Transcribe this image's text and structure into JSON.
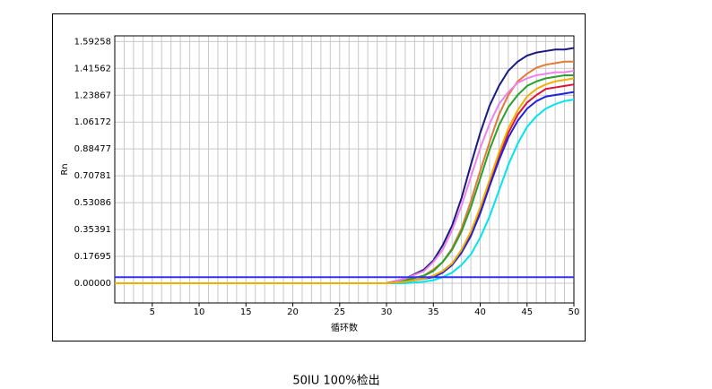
{
  "chart_data": {
    "type": "line",
    "y_label": "Rn",
    "x_label": "循环数",
    "caption": "50IU   100%检出",
    "x": [
      1,
      5,
      10,
      15,
      20,
      25,
      30,
      32,
      34,
      35,
      36,
      37,
      38,
      39,
      40,
      41,
      42,
      43,
      44,
      45,
      46,
      47,
      48,
      49,
      50
    ],
    "series": [
      {
        "color": "#1a1a80",
        "values": [
          0,
          0,
          0,
          0,
          0,
          0,
          0,
          0.03,
          0.09,
          0.15,
          0.25,
          0.38,
          0.56,
          0.78,
          0.99,
          1.17,
          1.3,
          1.4,
          1.46,
          1.5,
          1.52,
          1.53,
          1.54,
          1.54,
          1.55
        ]
      },
      {
        "color": "#e07b39",
        "values": [
          0,
          0,
          0,
          0,
          0,
          0,
          0,
          0.02,
          0.05,
          0.09,
          0.14,
          0.23,
          0.36,
          0.54,
          0.74,
          0.93,
          1.11,
          1.24,
          1.33,
          1.38,
          1.42,
          1.44,
          1.45,
          1.46,
          1.46
        ]
      },
      {
        "color": "#2ca02c",
        "values": [
          0,
          0,
          0,
          0,
          0,
          0,
          0,
          0.02,
          0.05,
          0.08,
          0.14,
          0.22,
          0.34,
          0.5,
          0.69,
          0.88,
          1.04,
          1.16,
          1.24,
          1.3,
          1.33,
          1.35,
          1.36,
          1.37,
          1.37
        ]
      },
      {
        "color": "#ee82ee",
        "values": [
          0,
          0,
          0,
          0,
          0,
          0,
          0,
          0.03,
          0.08,
          0.14,
          0.22,
          0.35,
          0.51,
          0.7,
          0.89,
          1.05,
          1.18,
          1.26,
          1.32,
          1.35,
          1.37,
          1.38,
          1.39,
          1.39,
          1.4
        ]
      },
      {
        "color": "#dc143c",
        "values": [
          0,
          0,
          0,
          0,
          0,
          0,
          0,
          0.01,
          0.03,
          0.04,
          0.08,
          0.13,
          0.21,
          0.33,
          0.48,
          0.66,
          0.84,
          0.99,
          1.11,
          1.19,
          1.24,
          1.28,
          1.29,
          1.3,
          1.31
        ]
      },
      {
        "color": "#2020e0",
        "values": [
          0,
          0,
          0,
          0,
          0,
          0,
          0,
          0.01,
          0.03,
          0.04,
          0.07,
          0.12,
          0.2,
          0.31,
          0.46,
          0.64,
          0.81,
          0.96,
          1.07,
          1.15,
          1.2,
          1.23,
          1.24,
          1.25,
          1.26
        ]
      },
      {
        "color": "#00e5ee",
        "values": [
          0,
          0,
          0,
          0,
          0,
          0,
          0,
          0,
          0.01,
          0.02,
          0.04,
          0.07,
          0.12,
          0.19,
          0.3,
          0.44,
          0.61,
          0.78,
          0.92,
          1.03,
          1.1,
          1.15,
          1.18,
          1.2,
          1.21
        ]
      },
      {
        "color": "#f0b000",
        "values": [
          0,
          0,
          0,
          0,
          0,
          0,
          0,
          0.01,
          0.03,
          0.05,
          0.08,
          0.13,
          0.22,
          0.34,
          0.5,
          0.68,
          0.86,
          1.02,
          1.14,
          1.23,
          1.28,
          1.31,
          1.33,
          1.34,
          1.35
        ]
      }
    ],
    "threshold": 0.04,
    "threshold_color": "#3333ee",
    "xlim": [
      1,
      50
    ],
    "ylim": [
      -0.13,
      1.63
    ],
    "xticks": [
      5,
      10,
      15,
      20,
      25,
      30,
      35,
      40,
      45,
      50
    ],
    "yticks": [
      {
        "value": 0,
        "label": "0.00000"
      },
      0.17695,
      0.35391,
      0.53086,
      0.70781,
      0.88477,
      1.06172,
      1.23867,
      1.41562,
      1.59258
    ],
    "grid": true
  }
}
